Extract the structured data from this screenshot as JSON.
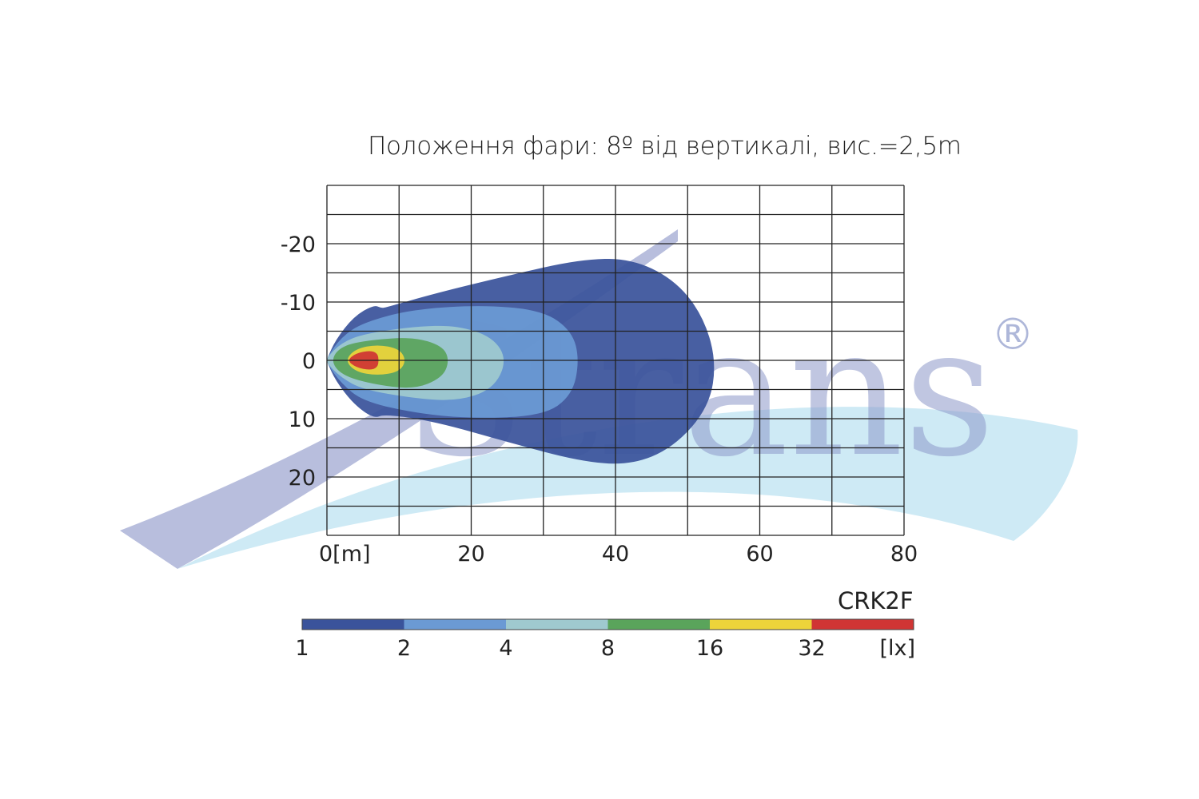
{
  "title": "Положення фари: 8º від вертикалі, вис.=2,5m",
  "model": "CRK2F",
  "watermark": {
    "text": "Strans",
    "registered_mark": "®"
  },
  "chart_data": {
    "type": "heatmap",
    "title": "Положення фари: 8º від вертикалі, вис.=2,5m",
    "xlim": [
      0,
      80
    ],
    "ylim": [
      -30,
      30
    ],
    "x_ticks": [
      {
        "value": 0,
        "label": "0[m]"
      },
      {
        "value": 20,
        "label": "20"
      },
      {
        "value": 40,
        "label": "40"
      },
      {
        "value": 60,
        "label": "60"
      },
      {
        "value": 80,
        "label": "80"
      }
    ],
    "y_ticks": [
      {
        "value": -20,
        "label": "-20"
      },
      {
        "value": -10,
        "label": "-10"
      },
      {
        "value": 0,
        "label": "0"
      },
      {
        "value": 10,
        "label": "10"
      },
      {
        "value": 20,
        "label": "20"
      }
    ],
    "grid": true,
    "grid_x_step": 10,
    "grid_y_step": 5,
    "contours": [
      {
        "level": 1,
        "color": "#3a539b",
        "x_extent": [
          0,
          54
        ],
        "y_extent": [
          -17.5,
          18
        ]
      },
      {
        "level": 2,
        "color": "#6b9ad4",
        "x_extent": [
          0,
          35
        ],
        "y_extent": [
          -9.5,
          10
        ]
      },
      {
        "level": 4,
        "color": "#9fc9cf",
        "x_extent": [
          0,
          25
        ],
        "y_extent": [
          -6,
          7
        ]
      },
      {
        "level": 8,
        "color": "#5aa45b",
        "x_extent": [
          0.5,
          17
        ],
        "y_extent": [
          -4,
          5
        ]
      },
      {
        "level": 16,
        "color": "#ecd43a",
        "x_extent": [
          2.5,
          11
        ],
        "y_extent": [
          -2.7,
          2.6
        ]
      },
      {
        "level": 32,
        "color": "#d03534",
        "x_extent": [
          2.8,
          7.2
        ],
        "y_extent": [
          -1.7,
          1.7
        ]
      }
    ],
    "colorbar": {
      "unit": "[lx]",
      "ticks": [
        "1",
        "2",
        "4",
        "8",
        "16",
        "32",
        "[lx]"
      ],
      "colors": [
        "#3a539b",
        "#6b9ad4",
        "#9fc9cf",
        "#5aa45b",
        "#ecd43a",
        "#d03534"
      ]
    }
  }
}
